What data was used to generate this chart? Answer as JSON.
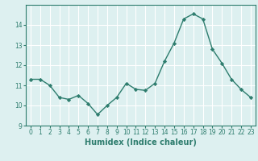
{
  "x": [
    0,
    1,
    2,
    3,
    4,
    5,
    6,
    7,
    8,
    9,
    10,
    11,
    12,
    13,
    14,
    15,
    16,
    17,
    18,
    19,
    20,
    21,
    22,
    23
  ],
  "y": [
    11.3,
    11.3,
    11.0,
    10.4,
    10.3,
    10.5,
    10.1,
    9.55,
    10.0,
    10.4,
    11.1,
    10.8,
    10.75,
    11.1,
    12.2,
    13.1,
    14.3,
    14.55,
    14.3,
    12.8,
    12.1,
    11.3,
    10.8,
    10.4
  ],
  "line_color": "#2e7d6e",
  "marker": "D",
  "marker_size": 2.2,
  "line_width": 1.0,
  "bg_color": "#ddf0f0",
  "grid_color": "#ffffff",
  "xlabel": "Humidex (Indice chaleur)",
  "xlim": [
    -0.5,
    23.5
  ],
  "ylim": [
    9.0,
    15.0
  ],
  "yticks": [
    9,
    10,
    11,
    12,
    13,
    14
  ],
  "xticks": [
    0,
    1,
    2,
    3,
    4,
    5,
    6,
    7,
    8,
    9,
    10,
    11,
    12,
    13,
    14,
    15,
    16,
    17,
    18,
    19,
    20,
    21,
    22,
    23
  ],
  "tick_label_fontsize": 5.5,
  "xlabel_fontsize": 7.0
}
